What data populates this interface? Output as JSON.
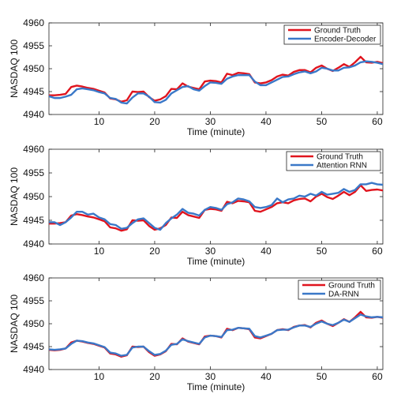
{
  "colors": {
    "ground_truth": "#e0141e",
    "prediction": "#3a78c8"
  },
  "chart_data": [
    {
      "type": "line",
      "title": "",
      "xlabel": "Time (minute)",
      "ylabel": "NASDAQ 100",
      "xlim": [
        1,
        61
      ],
      "ylim": [
        4940,
        4960
      ],
      "xticks": [
        10,
        20,
        30,
        40,
        50,
        60
      ],
      "yticks": [
        4940,
        4945,
        4950,
        4955,
        4960
      ],
      "legend_position": "top-right",
      "x": [
        1,
        2,
        3,
        4,
        5,
        6,
        7,
        8,
        9,
        10,
        11,
        12,
        13,
        14,
        15,
        16,
        17,
        18,
        19,
        20,
        21,
        22,
        23,
        24,
        25,
        26,
        27,
        28,
        29,
        30,
        31,
        32,
        33,
        34,
        35,
        36,
        37,
        38,
        39,
        40,
        41,
        42,
        43,
        44,
        45,
        46,
        47,
        48,
        49,
        50,
        51,
        52,
        53,
        54,
        55,
        56,
        57,
        58,
        59,
        60,
        61
      ],
      "series": [
        {
          "name": "Ground Truth",
          "color_key": "ground_truth",
          "values": [
            4944.2,
            4944.2,
            4944.3,
            4944.5,
            4946.0,
            4946.3,
            4946.1,
            4945.8,
            4945.6,
            4945.2,
            4944.8,
            4943.5,
            4943.3,
            4942.8,
            4943.1,
            4945.0,
            4944.9,
            4945.0,
            4943.8,
            4943.0,
            4943.3,
            4944.0,
            4945.6,
            4945.5,
            4946.8,
            4946.1,
            4945.8,
            4945.5,
            4947.2,
            4947.4,
            4947.3,
            4947.0,
            4948.9,
            4948.6,
            4949.1,
            4949.0,
            4948.8,
            4947.0,
            4946.8,
            4947.0,
            4947.5,
            4948.3,
            4948.7,
            4948.5,
            4949.3,
            4949.7,
            4949.7,
            4949.2,
            4950.2,
            4950.7,
            4950.0,
            4949.5,
            4950.2,
            4951.0,
            4950.4,
            4951.4,
            4952.6,
            4951.4,
            4951.3,
            4951.5,
            4951.2
          ]
        },
        {
          "name": "Encoder-Decoder",
          "color_key": "prediction",
          "values": [
            4944.0,
            4943.6,
            4943.6,
            4943.9,
            4944.3,
            4945.5,
            4945.7,
            4945.5,
            4945.3,
            4944.9,
            4944.6,
            4943.6,
            4943.4,
            4942.6,
            4942.4,
            4943.7,
            4944.6,
            4944.6,
            4943.9,
            4942.7,
            4942.6,
            4943.2,
            4944.6,
            4945.3,
            4946.0,
            4946.2,
            4945.5,
            4945.2,
            4946.2,
            4947.0,
            4946.9,
            4946.7,
            4947.8,
            4948.3,
            4948.6,
            4948.6,
            4948.6,
            4947.2,
            4946.4,
            4946.4,
            4947.0,
            4947.6,
            4948.2,
            4948.3,
            4948.8,
            4949.2,
            4949.4,
            4949.0,
            4949.4,
            4950.2,
            4950.0,
            4949.6,
            4949.6,
            4950.2,
            4950.3,
            4950.7,
            4951.4,
            4951.6,
            4951.5,
            4951.3,
            4951.0
          ]
        }
      ]
    },
    {
      "type": "line",
      "title": "",
      "xlabel": "Time (minute)",
      "ylabel": "NASDAQ 100",
      "xlim": [
        1,
        61
      ],
      "ylim": [
        4940,
        4960
      ],
      "xticks": [
        10,
        20,
        30,
        40,
        50,
        60
      ],
      "yticks": [
        4940,
        4945,
        4950,
        4955,
        4960
      ],
      "legend_position": "top-right",
      "x": [
        1,
        2,
        3,
        4,
        5,
        6,
        7,
        8,
        9,
        10,
        11,
        12,
        13,
        14,
        15,
        16,
        17,
        18,
        19,
        20,
        21,
        22,
        23,
        24,
        25,
        26,
        27,
        28,
        29,
        30,
        31,
        32,
        33,
        34,
        35,
        36,
        37,
        38,
        39,
        40,
        41,
        42,
        43,
        44,
        45,
        46,
        47,
        48,
        49,
        50,
        51,
        52,
        53,
        54,
        55,
        56,
        57,
        58,
        59,
        60,
        61
      ],
      "series": [
        {
          "name": "Ground Truth",
          "color_key": "ground_truth",
          "values": [
            4944.3,
            4944.3,
            4944.4,
            4944.6,
            4946.0,
            4946.3,
            4946.1,
            4945.8,
            4945.6,
            4945.2,
            4944.8,
            4943.5,
            4943.3,
            4942.8,
            4943.1,
            4945.0,
            4944.9,
            4945.0,
            4943.8,
            4943.0,
            4943.3,
            4944.0,
            4945.6,
            4945.5,
            4946.8,
            4946.1,
            4945.8,
            4945.5,
            4947.2,
            4947.4,
            4947.3,
            4947.0,
            4948.9,
            4948.6,
            4949.1,
            4949.0,
            4948.8,
            4947.0,
            4946.8,
            4947.3,
            4947.8,
            4948.6,
            4948.8,
            4948.6,
            4949.2,
            4949.5,
            4949.6,
            4949.0,
            4950.0,
            4950.6,
            4949.9,
            4949.5,
            4950.2,
            4951.0,
            4950.3,
            4951.0,
            4952.4,
            4951.2,
            4951.4,
            4951.5,
            4951.3
          ]
        },
        {
          "name": "Attention RNN",
          "color_key": "prediction",
          "values": [
            4944.6,
            4944.6,
            4944.0,
            4944.6,
            4945.6,
            4946.8,
            4946.8,
            4946.2,
            4946.4,
            4945.6,
            4945.2,
            4944.2,
            4944.0,
            4943.2,
            4943.4,
            4944.4,
            4945.2,
            4945.4,
            4944.4,
            4943.4,
            4943.0,
            4944.4,
            4945.4,
            4946.2,
            4947.4,
            4946.6,
            4946.4,
            4946.0,
            4947.2,
            4947.8,
            4947.6,
            4947.2,
            4948.4,
            4948.8,
            4949.6,
            4949.4,
            4949.0,
            4947.8,
            4947.6,
            4947.8,
            4948.2,
            4949.6,
            4948.8,
            4949.4,
            4949.6,
            4950.2,
            4950.0,
            4950.6,
            4950.2,
            4951.0,
            4950.4,
            4950.6,
            4950.8,
            4951.6,
            4951.0,
            4951.4,
            4952.6,
            4952.6,
            4952.9,
            4952.6,
            4952.5
          ]
        }
      ]
    },
    {
      "type": "line",
      "title": "",
      "xlabel": "Time (minute)",
      "ylabel": "NASDAQ 100",
      "xlim": [
        1,
        61
      ],
      "ylim": [
        4940,
        4960
      ],
      "xticks": [
        10,
        20,
        30,
        40,
        50,
        60
      ],
      "yticks": [
        4940,
        4945,
        4950,
        4955,
        4960
      ],
      "legend_position": "top-right",
      "x": [
        1,
        2,
        3,
        4,
        5,
        6,
        7,
        8,
        9,
        10,
        11,
        12,
        13,
        14,
        15,
        16,
        17,
        18,
        19,
        20,
        21,
        22,
        23,
        24,
        25,
        26,
        27,
        28,
        29,
        30,
        31,
        32,
        33,
        34,
        35,
        36,
        37,
        38,
        39,
        40,
        41,
        42,
        43,
        44,
        45,
        46,
        47,
        48,
        49,
        50,
        51,
        52,
        53,
        54,
        55,
        56,
        57,
        58,
        59,
        60,
        61
      ],
      "series": [
        {
          "name": "Ground Truth",
          "color_key": "ground_truth",
          "values": [
            4944.3,
            4944.2,
            4944.3,
            4944.6,
            4945.9,
            4946.3,
            4946.1,
            4945.8,
            4945.6,
            4945.2,
            4944.8,
            4943.5,
            4943.3,
            4942.8,
            4943.1,
            4945.0,
            4944.9,
            4945.0,
            4943.8,
            4943.0,
            4943.3,
            4944.0,
            4945.6,
            4945.5,
            4946.8,
            4946.1,
            4945.8,
            4945.5,
            4947.2,
            4947.4,
            4947.3,
            4947.0,
            4948.9,
            4948.6,
            4949.1,
            4949.0,
            4948.8,
            4947.0,
            4946.8,
            4947.3,
            4947.8,
            4948.6,
            4948.8,
            4948.6,
            4949.3,
            4949.6,
            4949.7,
            4949.2,
            4950.2,
            4950.7,
            4950.0,
            4949.5,
            4950.2,
            4951.0,
            4950.4,
            4951.4,
            4952.6,
            4951.4,
            4951.3,
            4951.5,
            4951.3
          ]
        },
        {
          "name": "DA-RNN",
          "color_key": "prediction",
          "values": [
            4944.4,
            4944.3,
            4944.4,
            4944.6,
            4945.6,
            4946.3,
            4946.2,
            4945.9,
            4945.7,
            4945.3,
            4944.9,
            4943.7,
            4943.5,
            4943.0,
            4943.2,
            4944.8,
            4945.0,
            4945.0,
            4944.0,
            4943.2,
            4943.4,
            4944.1,
            4945.4,
            4945.6,
            4946.6,
            4946.2,
            4945.9,
            4945.6,
            4947.0,
            4947.4,
            4947.3,
            4947.1,
            4948.6,
            4948.7,
            4949.1,
            4949.0,
            4948.9,
            4947.3,
            4947.0,
            4947.4,
            4947.8,
            4948.6,
            4948.7,
            4948.7,
            4949.2,
            4949.6,
            4949.6,
            4949.3,
            4950.0,
            4950.5,
            4950.0,
            4949.7,
            4950.2,
            4950.9,
            4950.4,
            4951.2,
            4952.0,
            4951.6,
            4951.4,
            4951.5,
            4951.4
          ]
        }
      ]
    }
  ]
}
